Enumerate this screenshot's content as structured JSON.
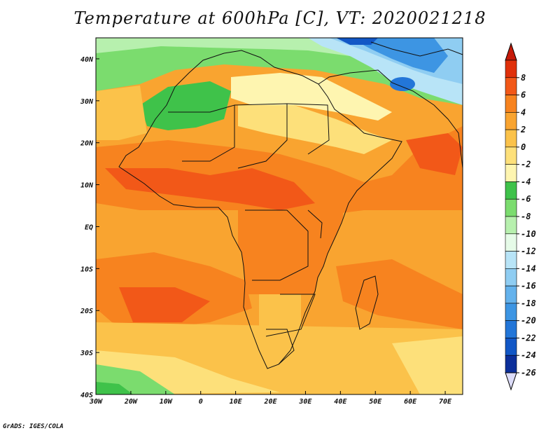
{
  "title": "Temperature at 600hPa [C], VT: 2020021218",
  "credit": "GrADS: IGES/COLA",
  "map": {
    "lon_range": [
      -30,
      75
    ],
    "lat_range": [
      -40,
      45
    ],
    "lon_ticks": [
      {
        "value": -30,
        "label": "30W"
      },
      {
        "value": -20,
        "label": "20W"
      },
      {
        "value": -10,
        "label": "10W"
      },
      {
        "value": 0,
        "label": "0"
      },
      {
        "value": 10,
        "label": "10E"
      },
      {
        "value": 20,
        "label": "20E"
      },
      {
        "value": 30,
        "label": "30E"
      },
      {
        "value": 40,
        "label": "40E"
      },
      {
        "value": 50,
        "label": "50E"
      },
      {
        "value": 60,
        "label": "60E"
      },
      {
        "value": 70,
        "label": "70E"
      }
    ],
    "lat_ticks": [
      {
        "value": 40,
        "label": "40N"
      },
      {
        "value": 30,
        "label": "30N"
      },
      {
        "value": 20,
        "label": "20N"
      },
      {
        "value": 10,
        "label": "10N"
      },
      {
        "value": 0,
        "label": "EQ"
      },
      {
        "value": -10,
        "label": "10S"
      },
      {
        "value": -20,
        "label": "20S"
      },
      {
        "value": -30,
        "label": "30S"
      },
      {
        "value": -40,
        "label": "40S"
      }
    ]
  },
  "colorbar": {
    "levels": [
      "8",
      "6",
      "4",
      "2",
      "0",
      "-2",
      "-4",
      "-6",
      "-8",
      "-10",
      "-12",
      "-14",
      "-16",
      "-18",
      "-20",
      "-22",
      "-24",
      "-26"
    ],
    "colors": [
      "#e0300a",
      "#f25818",
      "#f7831f",
      "#f9a430",
      "#fbc24a",
      "#fde07a",
      "#fef5b0",
      "#3fc24a",
      "#7bdc6e",
      "#b7f0ae",
      "#e6fbe8",
      "#b8e4f7",
      "#8fcdf2",
      "#64b2ec",
      "#3d95e3",
      "#2376d8",
      "#1257c6",
      "#0c2f9a"
    ],
    "top_color": "#c61a0a",
    "bottom_color": "#dcdcf8"
  }
}
